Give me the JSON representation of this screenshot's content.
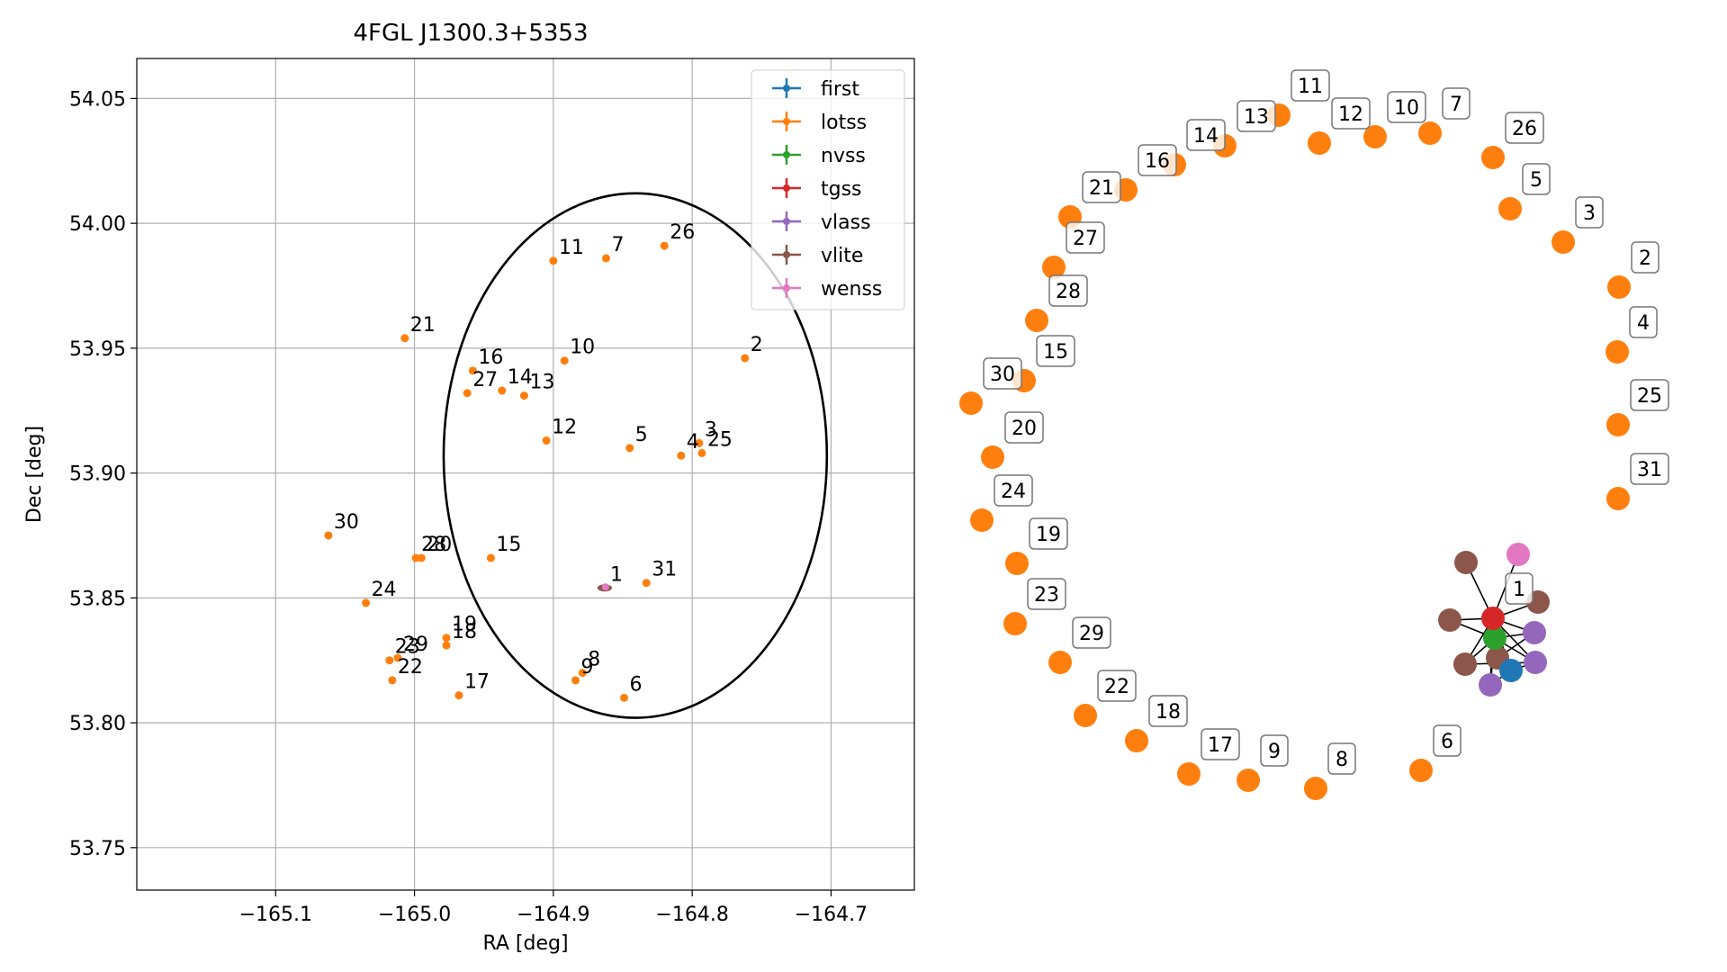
{
  "chart_data": [
    {
      "type": "scatter",
      "title": "4FGL J1300.3+5353",
      "xlabel": "RA [deg]",
      "ylabel": "Dec [deg]",
      "xlim": [
        -165.2,
        -164.64
      ],
      "ylim": [
        53.733,
        54.066
      ],
      "xticks": [
        -165.1,
        -165.0,
        -164.9,
        -164.8,
        -164.7
      ],
      "xtick_labels": [
        "−165.1",
        "−165.0",
        "−164.9",
        "−164.8",
        "−164.7"
      ],
      "yticks": [
        53.75,
        53.8,
        53.85,
        53.9,
        53.95,
        54.0,
        54.05
      ],
      "ytick_labels": [
        "53.75",
        "53.80",
        "53.85",
        "53.90",
        "53.95",
        "54.00",
        "54.05"
      ],
      "grid": true,
      "legend_position": "top-right",
      "legend": [
        {
          "name": "first",
          "color": "#1f77b4"
        },
        {
          "name": "lotss",
          "color": "#ff7f0e"
        },
        {
          "name": "nvss",
          "color": "#2ca02c"
        },
        {
          "name": "tgss",
          "color": "#d62728"
        },
        {
          "name": "vlass",
          "color": "#9467bd"
        },
        {
          "name": "vlite",
          "color": "#8c564b"
        },
        {
          "name": "wenss",
          "color": "#e377c2"
        }
      ],
      "ellipse": {
        "center_ra": -164.841,
        "center_dec": 53.907,
        "half_width_ra": 0.138,
        "half_height_dec": 0.105,
        "color": "#000000"
      },
      "points": [
        {
          "label": "1",
          "ra": -164.863,
          "dec": 53.854,
          "color": "#e377c2"
        },
        {
          "label": "2",
          "ra": -164.762,
          "dec": 53.946,
          "color": "#ff7f0e"
        },
        {
          "label": "3",
          "ra": -164.795,
          "dec": 53.912,
          "color": "#ff7f0e"
        },
        {
          "label": "4",
          "ra": -164.808,
          "dec": 53.907,
          "color": "#ff7f0e"
        },
        {
          "label": "5",
          "ra": -164.845,
          "dec": 53.91,
          "color": "#ff7f0e"
        },
        {
          "label": "6",
          "ra": -164.849,
          "dec": 53.81,
          "color": "#ff7f0e"
        },
        {
          "label": "7",
          "ra": -164.862,
          "dec": 53.986,
          "color": "#ff7f0e"
        },
        {
          "label": "8",
          "ra": -164.879,
          "dec": 53.82,
          "color": "#ff7f0e"
        },
        {
          "label": "9",
          "ra": -164.884,
          "dec": 53.817,
          "color": "#ff7f0e"
        },
        {
          "label": "10",
          "ra": -164.892,
          "dec": 53.945,
          "color": "#ff7f0e"
        },
        {
          "label": "11",
          "ra": -164.9,
          "dec": 53.985,
          "color": "#ff7f0e"
        },
        {
          "label": "12",
          "ra": -164.905,
          "dec": 53.913,
          "color": "#ff7f0e"
        },
        {
          "label": "13",
          "ra": -164.921,
          "dec": 53.931,
          "color": "#ff7f0e"
        },
        {
          "label": "14",
          "ra": -164.937,
          "dec": 53.933,
          "color": "#ff7f0e"
        },
        {
          "label": "15",
          "ra": -164.945,
          "dec": 53.866,
          "color": "#ff7f0e"
        },
        {
          "label": "16",
          "ra": -164.958,
          "dec": 53.941,
          "color": "#ff7f0e"
        },
        {
          "label": "17",
          "ra": -164.968,
          "dec": 53.811,
          "color": "#ff7f0e"
        },
        {
          "label": "18",
          "ra": -164.977,
          "dec": 53.831,
          "color": "#ff7f0e"
        },
        {
          "label": "19",
          "ra": -164.977,
          "dec": 53.834,
          "color": "#ff7f0e"
        },
        {
          "label": "20",
          "ra": -164.995,
          "dec": 53.866,
          "color": "#ff7f0e"
        },
        {
          "label": "21",
          "ra": -165.007,
          "dec": 53.954,
          "color": "#ff7f0e"
        },
        {
          "label": "22",
          "ra": -165.016,
          "dec": 53.817,
          "color": "#ff7f0e"
        },
        {
          "label": "23",
          "ra": -165.018,
          "dec": 53.825,
          "color": "#ff7f0e"
        },
        {
          "label": "24",
          "ra": -165.035,
          "dec": 53.848,
          "color": "#ff7f0e"
        },
        {
          "label": "25",
          "ra": -164.793,
          "dec": 53.908,
          "color": "#ff7f0e"
        },
        {
          "label": "26",
          "ra": -164.82,
          "dec": 53.991,
          "color": "#ff7f0e"
        },
        {
          "label": "27",
          "ra": -164.962,
          "dec": 53.932,
          "color": "#ff7f0e"
        },
        {
          "label": "28",
          "ra": -164.999,
          "dec": 53.866,
          "color": "#ff7f0e"
        },
        {
          "label": "29",
          "ra": -165.012,
          "dec": 53.826,
          "color": "#ff7f0e"
        },
        {
          "label": "30",
          "ra": -165.062,
          "dec": 53.875,
          "color": "#ff7f0e"
        },
        {
          "label": "31",
          "ra": -164.833,
          "dec": 53.856,
          "color": "#ff7f0e"
        }
      ]
    },
    {
      "type": "network",
      "nodes": [
        {
          "label": "11",
          "color": "#ff7f0e"
        },
        {
          "label": "12",
          "color": "#ff7f0e"
        },
        {
          "label": "10",
          "color": "#ff7f0e"
        },
        {
          "label": "7",
          "color": "#ff7f0e"
        },
        {
          "label": "26",
          "color": "#ff7f0e"
        },
        {
          "label": "13",
          "color": "#ff7f0e"
        },
        {
          "label": "14",
          "color": "#ff7f0e"
        },
        {
          "label": "16",
          "color": "#ff7f0e"
        },
        {
          "label": "21",
          "color": "#ff7f0e"
        },
        {
          "label": "27",
          "color": "#ff7f0e"
        },
        {
          "label": "28",
          "color": "#ff7f0e"
        },
        {
          "label": "15",
          "color": "#ff7f0e"
        },
        {
          "label": "30",
          "color": "#ff7f0e"
        },
        {
          "label": "20",
          "color": "#ff7f0e"
        },
        {
          "label": "24",
          "color": "#ff7f0e"
        },
        {
          "label": "19",
          "color": "#ff7f0e"
        },
        {
          "label": "23",
          "color": "#ff7f0e"
        },
        {
          "label": "29",
          "color": "#ff7f0e"
        },
        {
          "label": "22",
          "color": "#ff7f0e"
        },
        {
          "label": "18",
          "color": "#ff7f0e"
        },
        {
          "label": "17",
          "color": "#ff7f0e"
        },
        {
          "label": "9",
          "color": "#ff7f0e"
        },
        {
          "label": "8",
          "color": "#ff7f0e"
        },
        {
          "label": "6",
          "color": "#ff7f0e"
        },
        {
          "label": "5",
          "color": "#ff7f0e"
        },
        {
          "label": "3",
          "color": "#ff7f0e"
        },
        {
          "label": "2",
          "color": "#ff7f0e"
        },
        {
          "label": "4",
          "color": "#ff7f0e"
        },
        {
          "label": "25",
          "color": "#ff7f0e"
        },
        {
          "label": "31",
          "color": "#ff7f0e"
        },
        {
          "label": "",
          "color": "#e377c2"
        },
        {
          "label": "",
          "color": "#8c564b"
        },
        {
          "label": "",
          "color": "#8c564b"
        },
        {
          "label": "",
          "color": "#8c564b"
        },
        {
          "label": "",
          "color": "#8c564b"
        },
        {
          "label": "",
          "color": "#8c564b"
        },
        {
          "label": "",
          "color": "#9467bd"
        },
        {
          "label": "",
          "color": "#9467bd"
        },
        {
          "label": "",
          "color": "#9467bd"
        },
        {
          "label": "",
          "color": "#1f77b4"
        },
        {
          "label": "",
          "color": "#2ca02c"
        },
        {
          "label": "1",
          "color": "#d62728"
        }
      ]
    }
  ]
}
